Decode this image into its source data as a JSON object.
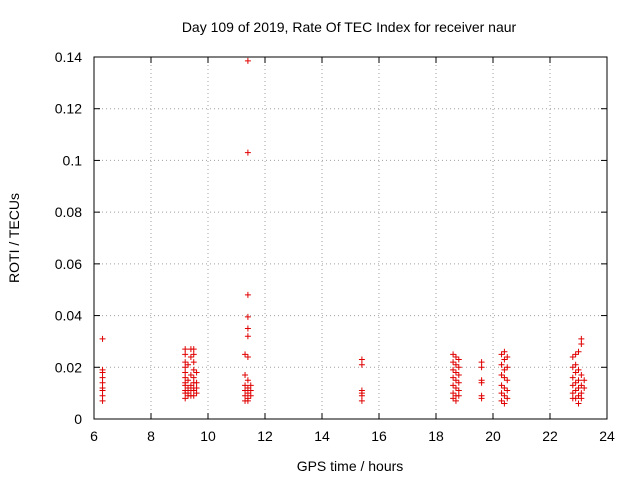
{
  "chart_data": {
    "type": "scatter",
    "title": "Day 109 of 2019, Rate Of TEC Index for receiver naur",
    "xlabel": "GPS time / hours",
    "ylabel": "ROTI / TECUs",
    "xlim": [
      6,
      24
    ],
    "ylim": [
      0,
      0.14
    ],
    "xticks": [
      "6",
      "8",
      "10",
      "12",
      "14",
      "16",
      "18",
      "20",
      "22",
      "24"
    ],
    "yticks": [
      "0",
      "0.02",
      "0.04",
      "0.06",
      "0.08",
      "0.1",
      "0.12",
      "0.14"
    ],
    "grid": true,
    "marker": "+",
    "color": "#e00000",
    "points": [
      [
        6.3,
        0.031
      ],
      [
        6.3,
        0.019
      ],
      [
        6.3,
        0.018
      ],
      [
        6.3,
        0.016
      ],
      [
        6.3,
        0.014
      ],
      [
        6.3,
        0.012
      ],
      [
        6.3,
        0.011
      ],
      [
        6.3,
        0.009
      ],
      [
        6.3,
        0.007
      ],
      [
        9.2,
        0.027
      ],
      [
        9.2,
        0.025
      ],
      [
        9.2,
        0.022
      ],
      [
        9.2,
        0.02
      ],
      [
        9.2,
        0.018
      ],
      [
        9.2,
        0.016
      ],
      [
        9.2,
        0.014
      ],
      [
        9.2,
        0.013
      ],
      [
        9.2,
        0.011
      ],
      [
        9.2,
        0.01
      ],
      [
        9.2,
        0.008
      ],
      [
        9.3,
        0.021
      ],
      [
        9.3,
        0.015
      ],
      [
        9.3,
        0.012
      ],
      [
        9.3,
        0.01
      ],
      [
        9.3,
        0.009
      ],
      [
        9.4,
        0.027
      ],
      [
        9.4,
        0.024
      ],
      [
        9.4,
        0.017
      ],
      [
        9.4,
        0.013
      ],
      [
        9.4,
        0.011
      ],
      [
        9.4,
        0.009
      ],
      [
        9.5,
        0.027
      ],
      [
        9.5,
        0.025
      ],
      [
        9.5,
        0.022
      ],
      [
        9.5,
        0.019
      ],
      [
        9.5,
        0.016
      ],
      [
        9.5,
        0.014
      ],
      [
        9.5,
        0.012
      ],
      [
        9.5,
        0.011
      ],
      [
        9.5,
        0.009
      ],
      [
        9.6,
        0.018
      ],
      [
        9.6,
        0.014
      ],
      [
        9.6,
        0.012
      ],
      [
        9.6,
        0.01
      ],
      [
        11.3,
        0.025
      ],
      [
        11.3,
        0.017
      ],
      [
        11.3,
        0.013
      ],
      [
        11.3,
        0.011
      ],
      [
        11.3,
        0.009
      ],
      [
        11.3,
        0.007
      ],
      [
        11.4,
        0.1385
      ],
      [
        11.4,
        0.103
      ],
      [
        11.4,
        0.048
      ],
      [
        11.4,
        0.0395
      ],
      [
        11.4,
        0.035
      ],
      [
        11.4,
        0.032
      ],
      [
        11.4,
        0.024
      ],
      [
        11.4,
        0.015
      ],
      [
        11.4,
        0.012
      ],
      [
        11.4,
        0.01
      ],
      [
        11.4,
        0.008
      ],
      [
        11.4,
        0.007
      ],
      [
        11.5,
        0.013
      ],
      [
        11.5,
        0.011
      ],
      [
        11.5,
        0.009
      ],
      [
        15.4,
        0.023
      ],
      [
        15.4,
        0.021
      ],
      [
        15.4,
        0.011
      ],
      [
        15.4,
        0.01
      ],
      [
        15.4,
        0.009
      ],
      [
        15.4,
        0.007
      ],
      [
        18.6,
        0.025
      ],
      [
        18.6,
        0.022
      ],
      [
        18.6,
        0.019
      ],
      [
        18.6,
        0.016
      ],
      [
        18.6,
        0.013
      ],
      [
        18.6,
        0.01
      ],
      [
        18.6,
        0.008
      ],
      [
        18.7,
        0.024
      ],
      [
        18.7,
        0.021
      ],
      [
        18.7,
        0.018
      ],
      [
        18.7,
        0.015
      ],
      [
        18.7,
        0.012
      ],
      [
        18.7,
        0.009
      ],
      [
        18.7,
        0.007
      ],
      [
        18.8,
        0.023
      ],
      [
        18.8,
        0.02
      ],
      [
        18.8,
        0.017
      ],
      [
        18.8,
        0.014
      ],
      [
        18.8,
        0.011
      ],
      [
        18.8,
        0.009
      ],
      [
        19.6,
        0.022
      ],
      [
        19.6,
        0.02
      ],
      [
        19.6,
        0.015
      ],
      [
        19.6,
        0.014
      ],
      [
        19.6,
        0.009
      ],
      [
        19.6,
        0.008
      ],
      [
        20.3,
        0.025
      ],
      [
        20.3,
        0.021
      ],
      [
        20.3,
        0.017
      ],
      [
        20.3,
        0.013
      ],
      [
        20.3,
        0.01
      ],
      [
        20.3,
        0.007
      ],
      [
        20.4,
        0.026
      ],
      [
        20.4,
        0.023
      ],
      [
        20.4,
        0.019
      ],
      [
        20.4,
        0.016
      ],
      [
        20.4,
        0.012
      ],
      [
        20.4,
        0.009
      ],
      [
        20.4,
        0.006
      ],
      [
        20.5,
        0.024
      ],
      [
        20.5,
        0.02
      ],
      [
        20.5,
        0.015
      ],
      [
        20.5,
        0.011
      ],
      [
        20.5,
        0.008
      ],
      [
        22.8,
        0.024
      ],
      [
        22.8,
        0.02
      ],
      [
        22.8,
        0.016
      ],
      [
        22.8,
        0.013
      ],
      [
        22.8,
        0.01
      ],
      [
        22.8,
        0.008
      ],
      [
        22.9,
        0.025
      ],
      [
        22.9,
        0.021
      ],
      [
        22.9,
        0.018
      ],
      [
        22.9,
        0.014
      ],
      [
        22.9,
        0.011
      ],
      [
        22.9,
        0.008
      ],
      [
        23.0,
        0.026
      ],
      [
        23.0,
        0.019
      ],
      [
        23.0,
        0.015
      ],
      [
        23.0,
        0.012
      ],
      [
        23.0,
        0.009
      ],
      [
        23.0,
        0.006
      ],
      [
        23.1,
        0.031
      ],
      [
        23.1,
        0.029
      ],
      [
        23.1,
        0.017
      ],
      [
        23.1,
        0.013
      ],
      [
        23.1,
        0.01
      ],
      [
        23.1,
        0.008
      ],
      [
        23.2,
        0.015
      ],
      [
        23.2,
        0.012
      ]
    ]
  }
}
